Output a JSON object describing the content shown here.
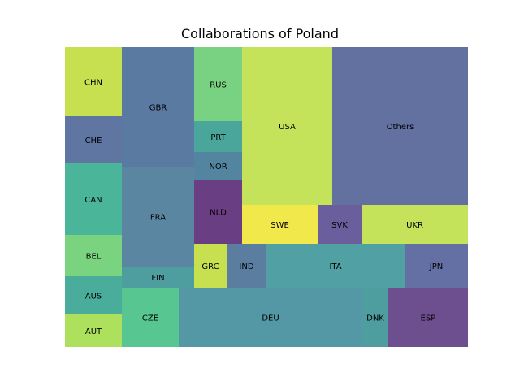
{
  "chart_data": {
    "type": "treemap",
    "title": "Collaborations of Poland",
    "tiles": [
      {
        "label": "CHN",
        "value": 5.96,
        "color": "#c7e04f"
      },
      {
        "label": "CHE",
        "value": 4.06,
        "color": "#5f75a2"
      },
      {
        "label": "CAN",
        "value": 6.16,
        "color": "#4bb59a"
      },
      {
        "label": "BEL",
        "value": 3.64,
        "color": "#7ad37f"
      },
      {
        "label": "AUS",
        "value": 3.22,
        "color": "#4aad9b"
      },
      {
        "label": "AUT",
        "value": 2.8,
        "color": "#ade15d"
      },
      {
        "label": "GBR",
        "value": 9.92,
        "color": "#5b7aa1"
      },
      {
        "label": "FRA",
        "value": 8.63,
        "color": "#5a86a2"
      },
      {
        "label": "FIN",
        "value": 1.88,
        "color": "#4e9ea0"
      },
      {
        "label": "RUS",
        "value": 5.07,
        "color": "#79d282"
      },
      {
        "label": "PRT",
        "value": 2.14,
        "color": "#4aa69b"
      },
      {
        "label": "NOR",
        "value": 1.91,
        "color": "#5485a0"
      },
      {
        "label": "NLD",
        "value": 4.44,
        "color": "#6a3e82"
      },
      {
        "label": "USA",
        "value": 20.68,
        "color": "#c4e35a"
      },
      {
        "label": "Others",
        "value": 31.07,
        "color": "#6371a1"
      },
      {
        "label": "SWE",
        "value": 5.02,
        "color": "#f1e84b"
      },
      {
        "label": "SVK",
        "value": 3.47,
        "color": "#6b5e9d"
      },
      {
        "label": "UKR",
        "value": 7.57,
        "color": "#c4e35a"
      },
      {
        "label": "GRC",
        "value": 2.1,
        "color": "#c6e04f"
      },
      {
        "label": "IND",
        "value": 2.58,
        "color": "#5a7da0"
      },
      {
        "label": "ITA",
        "value": 9.68,
        "color": "#51a0a3"
      },
      {
        "label": "JPN",
        "value": 4.35,
        "color": "#6470a4"
      },
      {
        "label": "CZE",
        "value": 5.06,
        "color": "#58c691"
      },
      {
        "label": "DEU",
        "value": 16.26,
        "color": "#5497a5"
      },
      {
        "label": "DNK",
        "value": 2.28,
        "color": "#4e9ea0"
      },
      {
        "label": "ESP",
        "value": 7.07,
        "color": "#6d4f8f"
      }
    ]
  }
}
